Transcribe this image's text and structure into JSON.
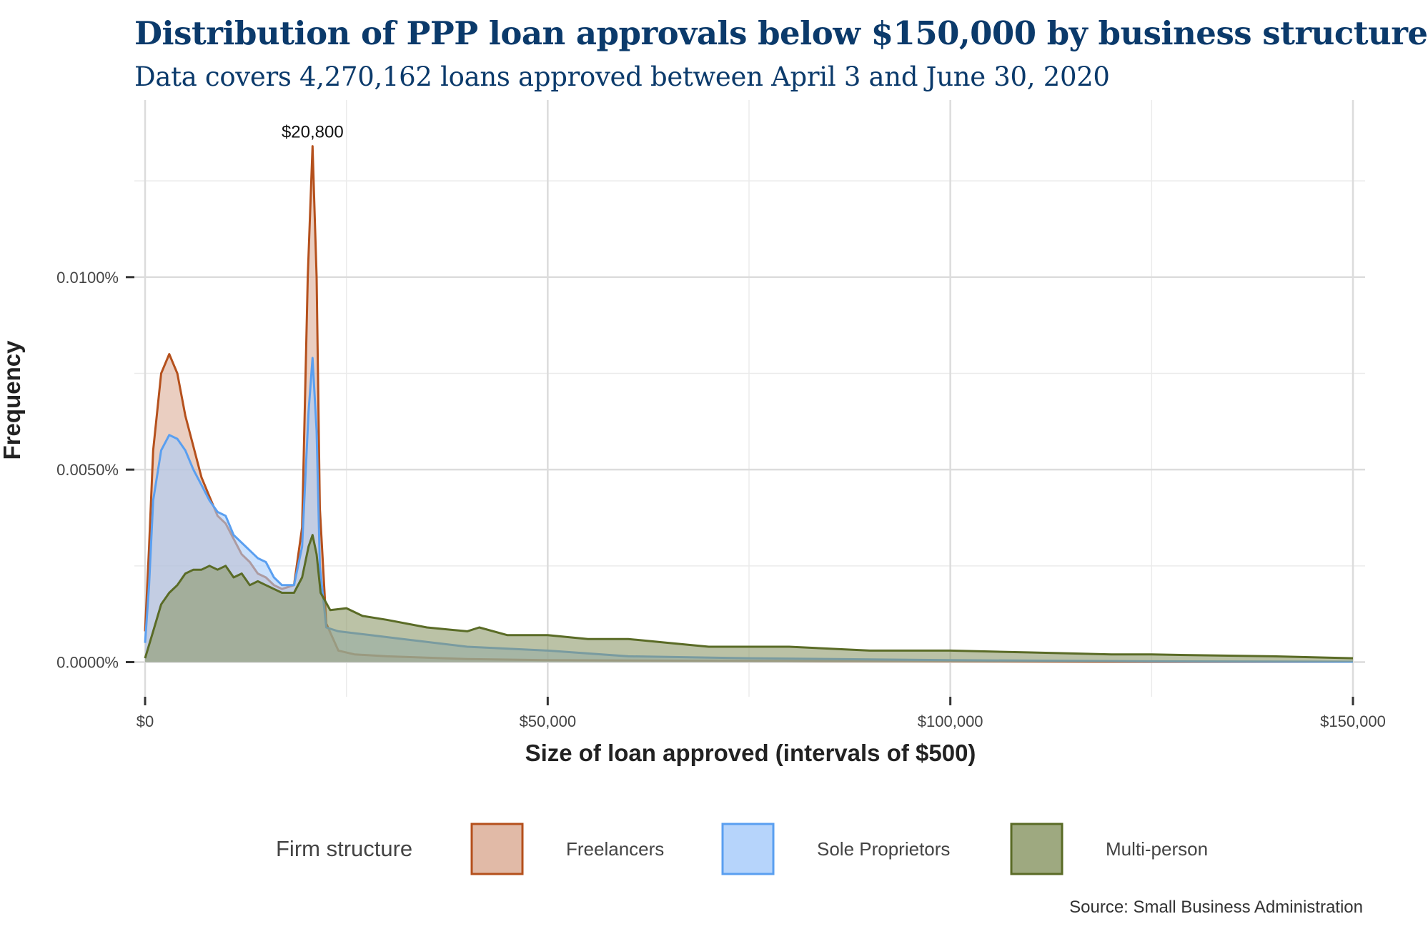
{
  "title": "Distribution of PPP loan approvals below $150,000 by business structure",
  "subtitle": "Data covers 4,270,162 loans approved between April 3 and June 30, 2020",
  "source": "Source: Small Business Administration",
  "chart_data": {
    "type": "area",
    "title": "Distribution of PPP loan approvals below $150,000 by business structure",
    "subtitle": "Data covers 4,270,162 loans approved between April 3 and June 30, 2020",
    "xlabel": "Size of loan approved (intervals of $500)",
    "ylabel": "Frequency",
    "xlim": [
      0,
      150000
    ],
    "ylim": [
      -0.0009,
      0.0146
    ],
    "grid": true,
    "x_ticks": [
      {
        "value": 0,
        "label": "$0"
      },
      {
        "value": 50000,
        "label": "$50,000"
      },
      {
        "value": 100000,
        "label": "$100,000"
      },
      {
        "value": 150000,
        "label": "$150,000"
      }
    ],
    "y_ticks": [
      {
        "value": 0,
        "label": "0.0000%"
      },
      {
        "value": 0.005,
        "label": "0.0050%"
      },
      {
        "value": 0.01,
        "label": "0.0100%"
      }
    ],
    "annotation": {
      "x": 20800,
      "y": 0.0137,
      "text": "$20,800"
    },
    "legend": {
      "title": "Firm structure",
      "position": "bottom"
    },
    "series": [
      {
        "name": "Freelancers",
        "stroke": "#b5501c",
        "fill": "#dcae98",
        "points": [
          [
            0,
            0.0008
          ],
          [
            500,
            0.003
          ],
          [
            1000,
            0.0055
          ],
          [
            2000,
            0.0075
          ],
          [
            3000,
            0.008
          ],
          [
            4000,
            0.0075
          ],
          [
            5000,
            0.0064
          ],
          [
            6000,
            0.0056
          ],
          [
            7000,
            0.0048
          ],
          [
            8000,
            0.0043
          ],
          [
            9000,
            0.0038
          ],
          [
            10000,
            0.0036
          ],
          [
            11000,
            0.0032
          ],
          [
            12000,
            0.0028
          ],
          [
            13000,
            0.0026
          ],
          [
            14000,
            0.0023
          ],
          [
            15000,
            0.0022
          ],
          [
            16000,
            0.002
          ],
          [
            17000,
            0.0019
          ],
          [
            18500,
            0.002
          ],
          [
            19500,
            0.0035
          ],
          [
            20200,
            0.01
          ],
          [
            20800,
            0.0134
          ],
          [
            21300,
            0.01
          ],
          [
            21700,
            0.004
          ],
          [
            22500,
            0.001
          ],
          [
            24000,
            0.0003
          ],
          [
            26000,
            0.0002
          ],
          [
            30000,
            0.00015
          ],
          [
            40000,
            8e-05
          ],
          [
            50000,
            5e-05
          ],
          [
            75000,
            3e-05
          ],
          [
            100000,
            2e-05
          ],
          [
            125000,
            1e-05
          ],
          [
            150000,
            1e-05
          ]
        ]
      },
      {
        "name": "Sole Proprietors",
        "stroke": "#5a9ff0",
        "fill": "#a9cdfa",
        "points": [
          [
            0,
            0.0005
          ],
          [
            500,
            0.002
          ],
          [
            1000,
            0.0042
          ],
          [
            2000,
            0.0055
          ],
          [
            3000,
            0.0059
          ],
          [
            4000,
            0.0058
          ],
          [
            5000,
            0.0055
          ],
          [
            6000,
            0.005
          ],
          [
            7000,
            0.0046
          ],
          [
            8000,
            0.0042
          ],
          [
            9000,
            0.0039
          ],
          [
            10000,
            0.0038
          ],
          [
            11000,
            0.0033
          ],
          [
            12000,
            0.0031
          ],
          [
            13000,
            0.0029
          ],
          [
            14000,
            0.0027
          ],
          [
            15000,
            0.0026
          ],
          [
            16000,
            0.0022
          ],
          [
            17000,
            0.002
          ],
          [
            18500,
            0.002
          ],
          [
            19500,
            0.003
          ],
          [
            20300,
            0.0065
          ],
          [
            20800,
            0.0079
          ],
          [
            21300,
            0.006
          ],
          [
            21700,
            0.0025
          ],
          [
            22500,
            0.0009
          ],
          [
            24000,
            0.0008
          ],
          [
            28000,
            0.0007
          ],
          [
            32000,
            0.0006
          ],
          [
            40000,
            0.0004
          ],
          [
            50000,
            0.0003
          ],
          [
            60000,
            0.00015
          ],
          [
            75000,
            0.0001
          ],
          [
            100000,
            5e-05
          ],
          [
            125000,
            2e-05
          ],
          [
            150000,
            1e-05
          ]
        ]
      },
      {
        "name": "Multi-person",
        "stroke": "#5a6b26",
        "fill": "#8d9a6a",
        "points": [
          [
            0,
            0.0001
          ],
          [
            1000,
            0.0008
          ],
          [
            2000,
            0.0015
          ],
          [
            3000,
            0.0018
          ],
          [
            4000,
            0.002
          ],
          [
            5000,
            0.0023
          ],
          [
            6000,
            0.0024
          ],
          [
            7000,
            0.0024
          ],
          [
            8000,
            0.0025
          ],
          [
            9000,
            0.0024
          ],
          [
            10000,
            0.0025
          ],
          [
            11000,
            0.0022
          ],
          [
            12000,
            0.0023
          ],
          [
            13000,
            0.002
          ],
          [
            14000,
            0.0021
          ],
          [
            15000,
            0.002
          ],
          [
            16000,
            0.0019
          ],
          [
            17000,
            0.0018
          ],
          [
            18500,
            0.0018
          ],
          [
            19500,
            0.0022
          ],
          [
            20300,
            0.003
          ],
          [
            20800,
            0.0033
          ],
          [
            21300,
            0.0028
          ],
          [
            21800,
            0.0018
          ],
          [
            23000,
            0.00135
          ],
          [
            25000,
            0.0014
          ],
          [
            27000,
            0.0012
          ],
          [
            30000,
            0.0011
          ],
          [
            35000,
            0.0009
          ],
          [
            40000,
            0.0008
          ],
          [
            41500,
            0.0009
          ],
          [
            45000,
            0.0007
          ],
          [
            50000,
            0.0007
          ],
          [
            55000,
            0.0006
          ],
          [
            60000,
            0.0006
          ],
          [
            65000,
            0.0005
          ],
          [
            70000,
            0.0004
          ],
          [
            75000,
            0.0004
          ],
          [
            80000,
            0.0004
          ],
          [
            90000,
            0.0003
          ],
          [
            100000,
            0.0003
          ],
          [
            110000,
            0.00025
          ],
          [
            120000,
            0.0002
          ],
          [
            125000,
            0.0002
          ],
          [
            130000,
            0.00018
          ],
          [
            140000,
            0.00015
          ],
          [
            150000,
            0.0001
          ]
        ]
      }
    ]
  }
}
